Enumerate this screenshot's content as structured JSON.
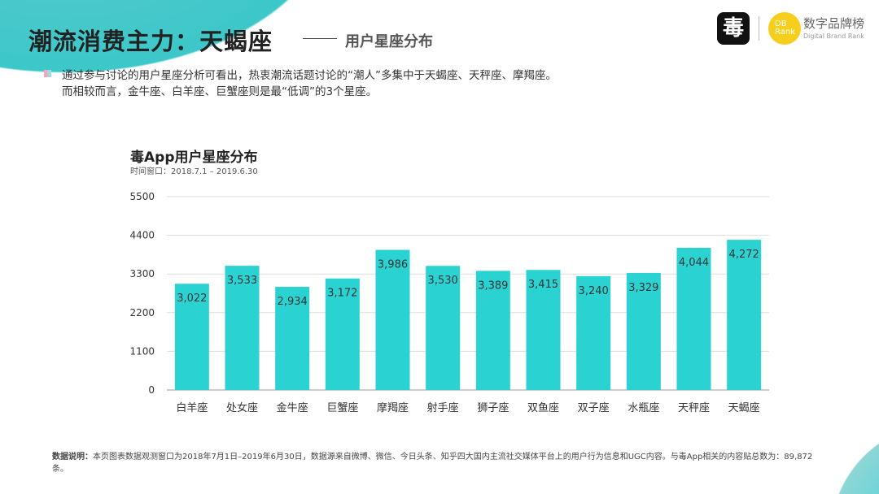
{
  "header": {
    "title": "潮流消费主力：天蝎座",
    "subtitle": "用户星座分布"
  },
  "logo": {
    "app_glyph": "毒",
    "db_text": "DB Rank",
    "brand_cn": "数字品牌榜",
    "brand_en": "Digital Brand Rank"
  },
  "intro": [
    "通过参与讨论的用户星座分析可看出，热衷潮流话题讨论的“潮人”多集中于天蝎座、天秤座、摩羯座。",
    "而相较而言，金牛座、白羊座、巨蟹座则是最“低调”的3个星座。"
  ],
  "note": {
    "label": "数据说明：",
    "text": "本页图表数据观测窗口为2018年7月1日–2019年6月30日，数据源来自微博、微信、今日头条、知乎四大国内主流社交媒体平台上的用户行为信息和UGC内容。与毒App相关的内容贴总数为：89,872 条。"
  },
  "chart_data": {
    "type": "bar",
    "title": "毒App用户星座分布",
    "subtitle": "时间窗口：2018.7.1 – 2019.6.30",
    "categories": [
      "白羊座",
      "处女座",
      "金牛座",
      "巨蟹座",
      "摩羯座",
      "射手座",
      "狮子座",
      "双鱼座",
      "双子座",
      "水瓶座",
      "天秤座",
      "天蝎座"
    ],
    "values": [
      3022,
      3533,
      2934,
      3172,
      3986,
      3530,
      3389,
      3415,
      3240,
      3329,
      4044,
      4272
    ],
    "data_labels": [
      "3,022",
      "3,533",
      "2,934",
      "3,172",
      "3,986",
      "3,530",
      "3,389",
      "3,415",
      "3,240",
      "3,329",
      "4,044",
      "4,272"
    ],
    "yticks": [
      0,
      1100,
      2200,
      3300,
      4400,
      5500
    ],
    "ylim": [
      0,
      5500
    ],
    "grid": true,
    "bar_color": "#2ad3d2"
  }
}
